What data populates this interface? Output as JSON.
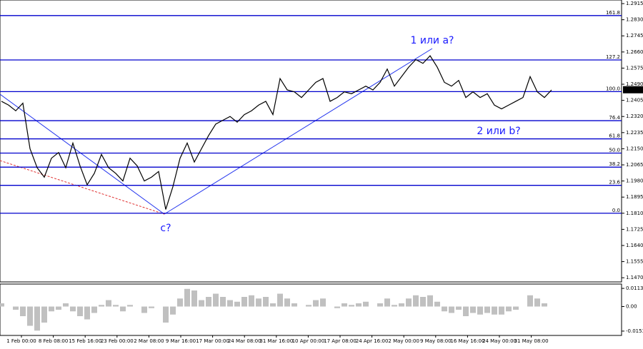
{
  "chart_data": {
    "type": "line",
    "color": "#000000",
    "values": [
      1.24,
      1.238,
      1.235,
      1.239,
      1.215,
      1.205,
      1.2,
      1.21,
      1.213,
      1.205,
      1.218,
      1.206,
      1.196,
      1.202,
      1.212,
      1.205,
      1.202,
      1.198,
      1.21,
      1.206,
      1.198,
      1.2,
      1.203,
      1.183,
      1.195,
      1.21,
      1.218,
      1.208,
      1.215,
      1.222,
      1.228,
      1.23,
      1.232,
      1.229,
      1.233,
      1.235,
      1.238,
      1.24,
      1.233,
      1.252,
      1.246,
      1.245,
      1.242,
      1.246,
      1.25,
      1.252,
      1.24,
      1.242,
      1.245,
      1.244,
      1.246,
      1.248,
      1.246,
      1.25,
      1.257,
      1.248,
      1.253,
      1.258,
      1.262,
      1.26,
      1.264,
      1.258,
      1.25,
      1.248,
      1.251,
      1.242,
      1.245,
      1.242,
      1.244,
      1.238,
      1.236,
      1.238,
      1.24,
      1.242,
      1.253,
      1.245,
      1.242,
      1.246
    ],
    "ylim": [
      1.1448,
      1.2934
    ],
    "yticks": [
      {
        "value": 1.2915,
        "label": "1.2915"
      },
      {
        "value": 1.283,
        "label": "1.2830"
      },
      {
        "value": 1.2745,
        "label": "1.2745"
      },
      {
        "value": 1.266,
        "label": "1.2660"
      },
      {
        "value": 1.2575,
        "label": "1.2575"
      },
      {
        "value": 1.249,
        "label": "1.2490"
      },
      {
        "value": 1.2405,
        "label": "1.2405"
      },
      {
        "value": 1.232,
        "label": "1.2320"
      },
      {
        "value": 1.2235,
        "label": "1.2235"
      },
      {
        "value": 1.215,
        "label": "1.2150"
      },
      {
        "value": 1.2065,
        "label": "1.2065"
      },
      {
        "value": 1.198,
        "label": "1.1980"
      },
      {
        "value": 1.1895,
        "label": "1.1895"
      },
      {
        "value": 1.181,
        "label": "1.1810"
      },
      {
        "value": 1.1725,
        "label": "1.1725"
      },
      {
        "value": 1.164,
        "label": "1.1640"
      },
      {
        "value": 1.1555,
        "label": "1.1555"
      },
      {
        "value": 1.147,
        "label": "1.1470"
      }
    ],
    "current_price": {
      "value": 1.2461,
      "label": "1.2461"
    },
    "fib_levels": [
      {
        "value": 1.2852,
        "label": "161.8"
      },
      {
        "value": 1.2618,
        "label": "127.2"
      },
      {
        "value": 1.2451,
        "label": "100.0"
      },
      {
        "value": 1.2298,
        "label": "76.4"
      },
      {
        "value": 1.2202,
        "label": "61.8"
      },
      {
        "value": 1.2127,
        "label": "50.0"
      },
      {
        "value": 1.2053,
        "label": "38.2"
      },
      {
        "value": 1.1957,
        "label": "23.6"
      },
      {
        "value": 1.181,
        "label": "0.0"
      }
    ],
    "annotations": [
      "1 или a?",
      "2 или b?",
      "c?"
    ],
    "x_labels": [
      "1 Feb 00:00",
      "8 Feb 08:00",
      "15 Feb 16:00",
      "23 Feb 00:00",
      "2 Mar 08:00",
      "9 Mar 16:00",
      "17 Mar 00:00",
      "24 Mar 08:00",
      "31 Mar 16:00",
      "10 Apr 00:00",
      "17 Apr 08:00",
      "24 Apr 16:00",
      "2 May 00:00",
      "9 May 08:00",
      "16 May 16:00",
      "24 May 00:00",
      "31 May 08:00"
    ],
    "oscillator": {
      "color": "#c0c0c0",
      "values": [
        0.002,
        0.0,
        -0.002,
        -0.006,
        -0.012,
        -0.015,
        -0.01,
        -0.003,
        -0.002,
        0.002,
        -0.003,
        -0.006,
        -0.008,
        -0.004,
        0.001,
        0.004,
        0.001,
        -0.003,
        0.001,
        0.0,
        -0.004,
        -0.001,
        0.0,
        -0.01,
        -0.005,
        0.005,
        0.011,
        0.01,
        0.004,
        0.006,
        0.008,
        0.006,
        0.004,
        0.003,
        0.006,
        0.007,
        0.005,
        0.006,
        0.002,
        0.008,
        0.005,
        0.002,
        0.0,
        0.001,
        0.004,
        0.005,
        0.0,
        -0.001,
        0.002,
        0.001,
        0.002,
        0.003,
        0.0,
        0.002,
        0.005,
        0.001,
        0.002,
        0.005,
        0.007,
        0.006,
        0.007,
        0.003,
        -0.003,
        -0.004,
        -0.002,
        -0.006,
        -0.004,
        -0.005,
        -0.004,
        -0.005,
        -0.005,
        -0.003,
        -0.002,
        0.0,
        0.007,
        0.005,
        0.002,
        0.0
      ],
      "ylim": [
        -0.018,
        0.014
      ],
      "yticks": [
        {
          "value": 0.0113,
          "label": "0.0113"
        },
        {
          "value": 0,
          "label": "0.00"
        },
        {
          "value": -0.0153,
          "label": "-0.0153"
        }
      ]
    }
  }
}
